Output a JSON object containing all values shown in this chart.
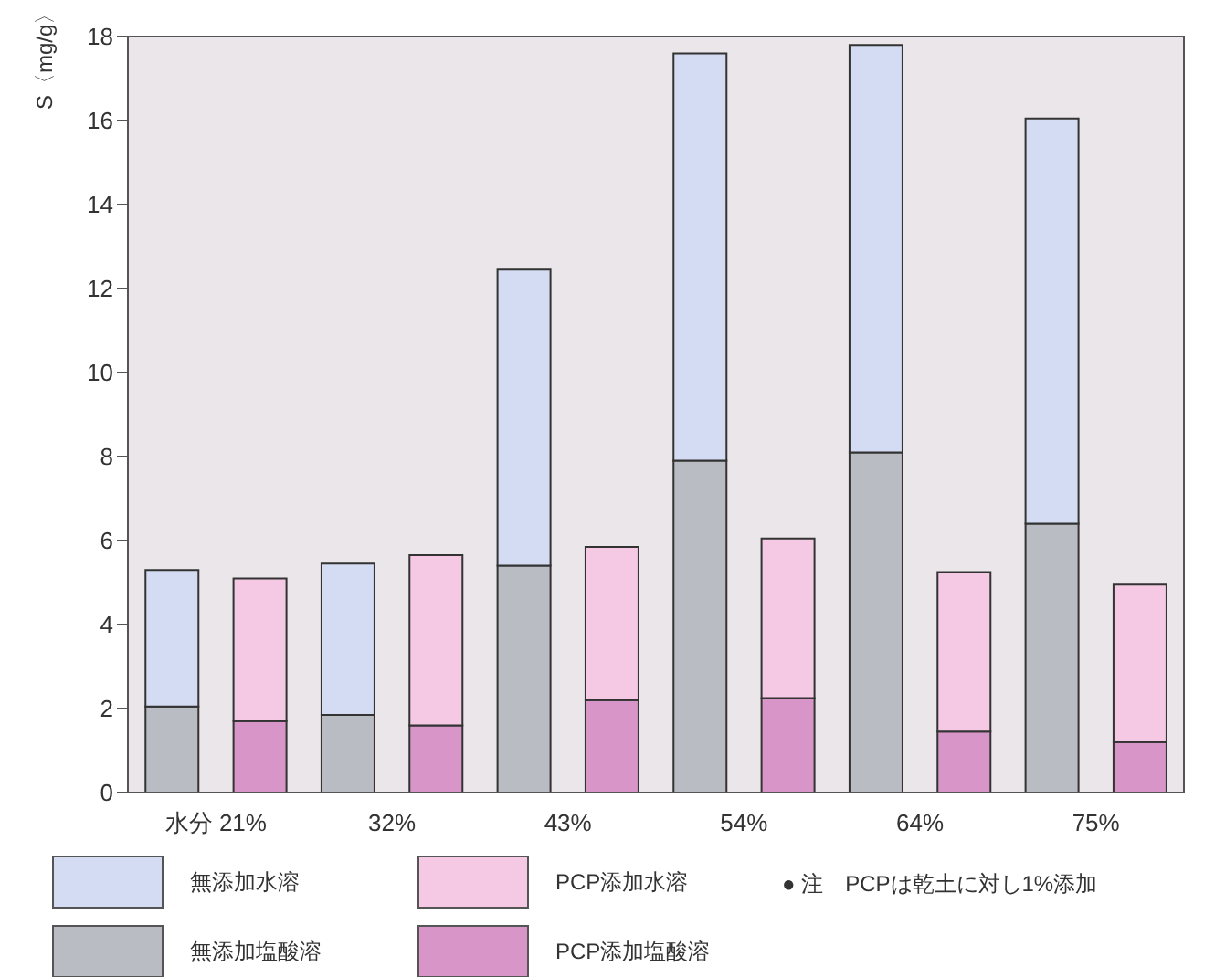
{
  "chart_data": {
    "type": "bar",
    "stacked": true,
    "ylabel": "S〈mg/g〉",
    "categories": [
      "水分 21%",
      null,
      "32%",
      null,
      "43%",
      null,
      "54%",
      null,
      "64%",
      null,
      "75%",
      null
    ],
    "series": [
      {
        "name": "無添加塩酸溶",
        "color": "#b9bcc2",
        "values": [
          2.05,
          null,
          1.85,
          null,
          5.4,
          null,
          7.9,
          null,
          8.1,
          null,
          6.4,
          null
        ]
      },
      {
        "name": "無添加水溶",
        "color": "#d3dcf2",
        "values": [
          3.25,
          null,
          3.6,
          null,
          7.05,
          null,
          9.7,
          null,
          9.7,
          null,
          9.65,
          null
        ]
      },
      {
        "name": "PCP添加塩酸溶",
        "color": "#d895c8",
        "values": [
          null,
          1.7,
          null,
          1.6,
          null,
          2.2,
          null,
          2.25,
          null,
          1.45,
          null,
          1.2
        ]
      },
      {
        "name": "PCP添加水溶",
        "color": "#f5c8e3",
        "values": [
          null,
          3.4,
          null,
          4.05,
          null,
          3.65,
          null,
          3.8,
          null,
          3.8,
          null,
          3.75
        ]
      }
    ],
    "ylim": [
      0,
      18
    ],
    "yticks": [
      0,
      2,
      4,
      6,
      8,
      10,
      12,
      14,
      16,
      18
    ],
    "legend": "bottom",
    "annotations": [
      "● 注　PCPは乾土に対し1%添加"
    ]
  }
}
